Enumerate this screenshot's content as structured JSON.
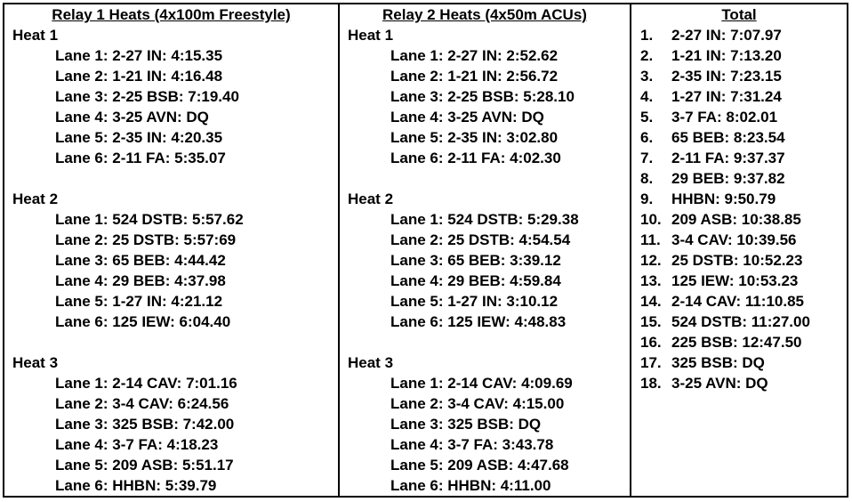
{
  "relay1": {
    "title": "Relay 1 Heats (4x100m Freestyle)",
    "heats": [
      {
        "label": "Heat 1",
        "lanes": [
          "Lane 1: 2-27 IN: 4:15.35",
          "Lane 2: 1-21 IN: 4:16.48",
          "Lane 3: 2-25 BSB: 7:19.40",
          "Lane 4: 3-25 AVN: DQ",
          "Lane 5: 2-35 IN: 4:20.35",
          "Lane 6: 2-11 FA: 5:35.07"
        ]
      },
      {
        "label": "Heat 2",
        "lanes": [
          "Lane 1: 524 DSTB: 5:57.62",
          "Lane 2: 25 DSTB: 5:57:69",
          "Lane 3: 65 BEB: 4:44.42",
          "Lane 4: 29 BEB: 4:37.98",
          "Lane 5: 1-27 IN: 4:21.12",
          "Lane 6: 125 IEW: 6:04.40"
        ]
      },
      {
        "label": "Heat 3",
        "lanes": [
          "Lane 1: 2-14 CAV: 7:01.16",
          "Lane 2: 3-4 CAV: 6:24.56",
          "Lane 3: 325 BSB: 7:42.00",
          "Lane 4: 3-7 FA: 4:18.23",
          "Lane 5: 209 ASB: 5:51.17",
          "Lane 6: HHBN: 5:39.79"
        ]
      }
    ]
  },
  "relay2": {
    "title": "Relay 2 Heats (4x50m ACUs)",
    "heats": [
      {
        "label": "Heat 1",
        "lanes": [
          "Lane 1: 2-27 IN: 2:52.62",
          "Lane 2: 1-21 IN: 2:56.72",
          "Lane 3: 2-25 BSB: 5:28.10",
          "Lane 4: 3-25 AVN: DQ",
          "Lane 5: 2-35 IN: 3:02.80",
          "Lane 6: 2-11 FA: 4:02.30"
        ]
      },
      {
        "label": "Heat 2",
        "lanes": [
          "Lane 1: 524 DSTB: 5:29.38",
          "Lane 2: 25 DSTB: 4:54.54",
          "Lane 3: 65 BEB: 3:39.12",
          "Lane 4: 29 BEB: 4:59.84",
          "Lane 5: 1-27 IN: 3:10.12",
          "Lane 6: 125 IEW: 4:48.83"
        ]
      },
      {
        "label": "Heat 3",
        "lanes": [
          "Lane 1: 2-14 CAV: 4:09.69",
          "Lane 2: 3-4 CAV: 4:15.00",
          "Lane 3: 325 BSB: DQ",
          "Lane 4: 3-7 FA: 3:43.78",
          "Lane 5: 209 ASB: 4:47.68",
          "Lane 6: HHBN: 4:11.00"
        ]
      }
    ]
  },
  "total": {
    "title": "Total",
    "rows": [
      {
        "rank": "1.",
        "entry": "2-27 IN: 7:07.97"
      },
      {
        "rank": "2.",
        "entry": "1-21 IN: 7:13.20"
      },
      {
        "rank": "3.",
        "entry": "2-35 IN: 7:23.15"
      },
      {
        "rank": "4.",
        "entry": "1-27 IN: 7:31.24"
      },
      {
        "rank": "5.",
        "entry": "3-7 FA: 8:02.01"
      },
      {
        "rank": "6.",
        "entry": "65 BEB: 8:23.54"
      },
      {
        "rank": "7.",
        "entry": "2-11 FA: 9:37.37"
      },
      {
        "rank": "8.",
        "entry": "29 BEB: 9:37.82"
      },
      {
        "rank": "9.",
        "entry": "HHBN: 9:50.79"
      },
      {
        "rank": "10.",
        "entry": "209 ASB: 10:38.85"
      },
      {
        "rank": "11.",
        "entry": "3-4 CAV: 10:39.56"
      },
      {
        "rank": "12.",
        "entry": "25 DSTB: 10:52.23"
      },
      {
        "rank": "13.",
        "entry": "125 IEW: 10:53.23"
      },
      {
        "rank": "14.",
        "entry": "2-14 CAV: 11:10.85"
      },
      {
        "rank": "15.",
        "entry": "524 DSTB: 11:27.00"
      },
      {
        "rank": "16.",
        "entry": "225 BSB: 12:47.50"
      },
      {
        "rank": "17.",
        "entry": "325 BSB: DQ"
      },
      {
        "rank": "18.",
        "entry": "3-25 AVN: DQ"
      }
    ]
  }
}
